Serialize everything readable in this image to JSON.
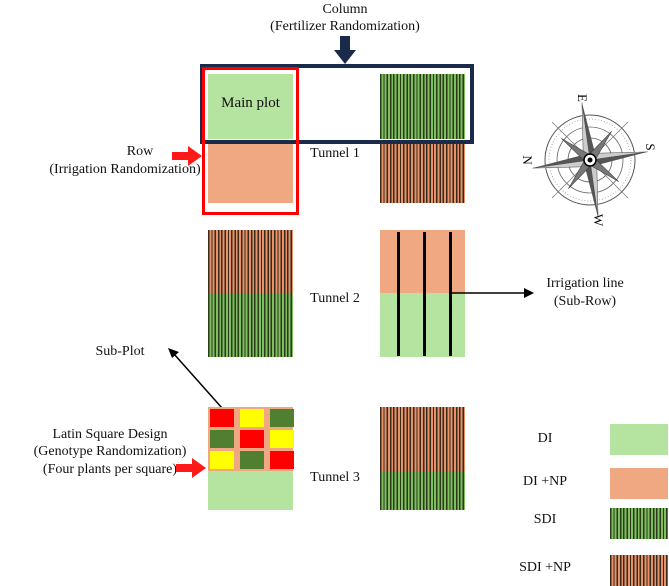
{
  "column": {
    "line1": "Column",
    "line2": "(Fertilizer Randomization)"
  },
  "row": {
    "line1": "Row",
    "line2": "(Irrigation Randomization)"
  },
  "main_plot": "Main plot",
  "tunnels": [
    "Tunnel 1",
    "Tunnel 2",
    "Tunnel 3"
  ],
  "irrigation": {
    "line1": "Irrigation line",
    "line2": "(Sub-Row)"
  },
  "subplot": "Sub-Plot",
  "latin": [
    "Latin Square Design",
    "(Genotype Randomization)",
    "(Four plants per square)"
  ],
  "latin_grid": [
    [
      "R",
      "Y",
      "G"
    ],
    [
      "G",
      "R",
      "Y"
    ],
    [
      "Y",
      "G",
      "R"
    ]
  ],
  "compass": {
    "labels": [
      "N",
      "E",
      "S",
      "W"
    ]
  },
  "legend": [
    {
      "label": "DI",
      "fill": "DI"
    },
    {
      "label": "DI +NP",
      "fill": "DI+NP"
    },
    {
      "label": "SDI",
      "fill": "SDI"
    },
    {
      "label": "SDI +NP",
      "fill": "SDI+NP"
    }
  ],
  "colors": {
    "DI": "#b5e4a0",
    "DI+NP": "#f0a882",
    "column_box": "#1a2a4a",
    "row_box": "#ff0000",
    "arrow_red": "#ff1a1a"
  }
}
